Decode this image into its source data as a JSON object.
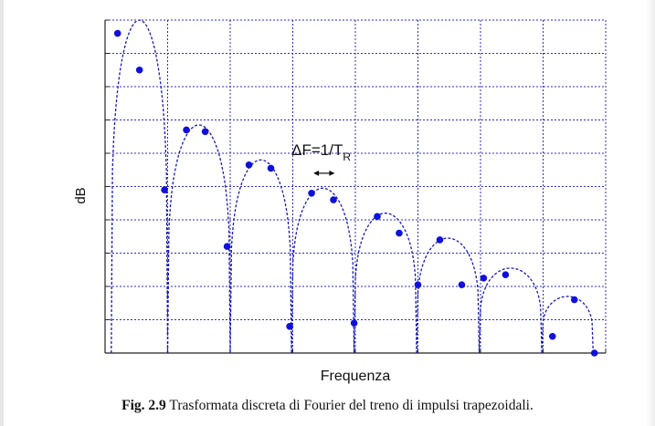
{
  "caption": {
    "fig_label": "Fig. 2.9",
    "text": "Trasformata discreta di Fourier del treno di impulsi trapezoidali."
  },
  "chart_data": {
    "type": "scatter",
    "title": "",
    "xlabel": "Frequenza",
    "ylabel": "dB",
    "xlim": [
      0,
      8
    ],
    "ylim": [
      0,
      10
    ],
    "grid": true,
    "tick_labels": false,
    "annotation": {
      "text_main": "ΔF=1/T",
      "text_sub": "R",
      "arrow": "double-headed horizontal",
      "x": [
        3.33,
        3.67
      ],
      "y": 5.4
    },
    "sample_points": [
      {
        "x": 0.2,
        "y": 9.6
      },
      {
        "x": 0.55,
        "y": 8.5
      },
      {
        "x": 0.95,
        "y": 4.9
      },
      {
        "x": 1.3,
        "y": 6.7
      },
      {
        "x": 1.6,
        "y": 6.65
      },
      {
        "x": 1.95,
        "y": 3.2
      },
      {
        "x": 2.3,
        "y": 5.65
      },
      {
        "x": 2.65,
        "y": 5.55
      },
      {
        "x": 2.95,
        "y": 0.8
      },
      {
        "x": 3.3,
        "y": 4.8
      },
      {
        "x": 3.65,
        "y": 4.6
      },
      {
        "x": 3.98,
        "y": 0.9
      },
      {
        "x": 4.35,
        "y": 4.1
      },
      {
        "x": 4.7,
        "y": 3.6
      },
      {
        "x": 5.0,
        "y": 2.05
      },
      {
        "x": 5.35,
        "y": 3.4
      },
      {
        "x": 5.7,
        "y": 2.05
      },
      {
        "x": 6.05,
        "y": 2.25
      },
      {
        "x": 6.4,
        "y": 2.35
      },
      {
        "x": 7.15,
        "y": 0.5
      },
      {
        "x": 7.5,
        "y": 1.6
      },
      {
        "x": 7.82,
        "y": 0
      }
    ],
    "envelope_lobes": [
      {
        "x0": 0.1,
        "x1": 1.0,
        "peak": 10.0
      },
      {
        "x0": 1.0,
        "x1": 2.0,
        "peak": 6.85
      },
      {
        "x0": 2.0,
        "x1": 2.98,
        "peak": 5.8
      },
      {
        "x0": 2.98,
        "x1": 3.98,
        "peak": 4.95
      },
      {
        "x0": 3.98,
        "x1": 4.98,
        "peak": 4.2
      },
      {
        "x0": 4.98,
        "x1": 5.98,
        "peak": 3.45
      },
      {
        "x0": 5.98,
        "x1": 6.98,
        "peak": 2.55
      },
      {
        "x0": 6.98,
        "x1": 7.8,
        "peak": 1.7
      }
    ],
    "colors": {
      "points": "#1010dd",
      "dash": "#1a1ab8",
      "grid": "#2d2dc8",
      "axes": "#222222"
    }
  }
}
